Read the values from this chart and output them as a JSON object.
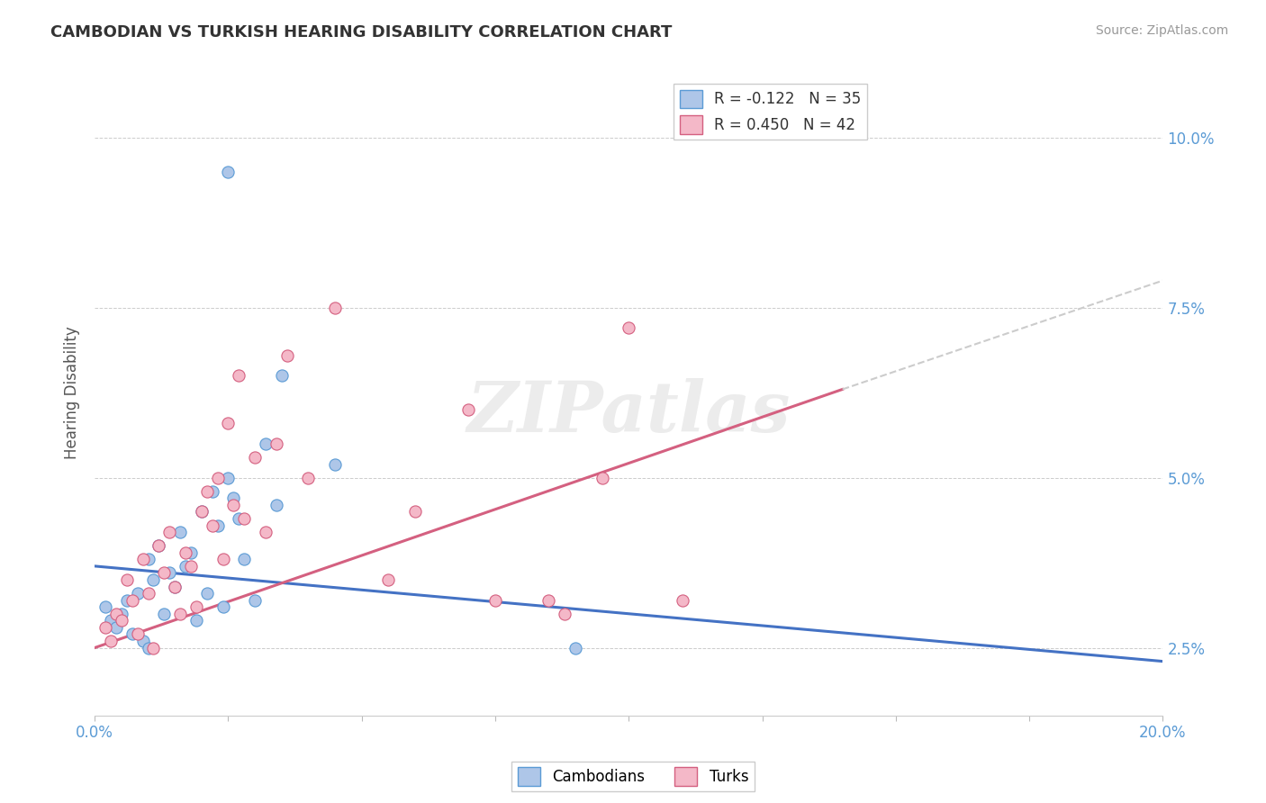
{
  "title": "CAMBODIAN VS TURKISH HEARING DISABILITY CORRELATION CHART",
  "source": "Source: ZipAtlas.com",
  "ylabel_label": "Hearing Disability",
  "xlim": [
    0.0,
    20.0
  ],
  "ylim": [
    1.5,
    11.0
  ],
  "ytop": 10.0,
  "cambodian_color": "#aec6e8",
  "turkish_color": "#f4b8c8",
  "cambodian_edge": "#5b9bd5",
  "turkish_edge": "#d46080",
  "legend_label_1": "R = -0.122   N = 35",
  "legend_label_2": "R = 0.450   N = 42",
  "watermark": "ZIPatlas",
  "trendline_cambodian_color": "#4472c4",
  "trendline_turkish_color": "#d46080",
  "trendline_extra_color": "#cccccc",
  "ytick_vals": [
    2.5,
    5.0,
    7.5,
    10.0
  ],
  "xtick_show": [
    0.0,
    20.0
  ],
  "grid_color": "#dddddd",
  "cam_x": [
    0.2,
    0.3,
    0.4,
    0.5,
    0.6,
    0.7,
    0.8,
    0.9,
    1.0,
    1.0,
    1.1,
    1.2,
    1.3,
    1.4,
    1.5,
    1.6,
    1.7,
    1.8,
    1.9,
    2.0,
    2.1,
    2.2,
    2.3,
    2.4,
    2.5,
    2.6,
    2.7,
    2.8,
    3.0,
    3.2,
    3.4,
    3.5,
    4.5,
    9.0,
    2.5
  ],
  "cam_y": [
    3.1,
    2.9,
    2.8,
    3.0,
    3.2,
    2.7,
    3.3,
    2.6,
    3.8,
    2.5,
    3.5,
    4.0,
    3.0,
    3.6,
    3.4,
    4.2,
    3.7,
    3.9,
    2.9,
    4.5,
    3.3,
    4.8,
    4.3,
    3.1,
    5.0,
    4.7,
    4.4,
    3.8,
    3.2,
    5.5,
    4.6,
    6.5,
    5.2,
    2.5,
    9.5
  ],
  "turk_x": [
    0.2,
    0.3,
    0.4,
    0.5,
    0.6,
    0.7,
    0.8,
    0.9,
    1.0,
    1.1,
    1.2,
    1.3,
    1.4,
    1.5,
    1.6,
    1.7,
    1.8,
    1.9,
    2.0,
    2.1,
    2.2,
    2.3,
    2.4,
    2.5,
    2.6,
    2.7,
    2.8,
    3.0,
    3.2,
    3.4,
    3.6,
    4.0,
    4.5,
    5.5,
    6.0,
    7.0,
    7.5,
    8.5,
    8.8,
    9.5,
    10.0,
    11.0
  ],
  "turk_y": [
    2.8,
    2.6,
    3.0,
    2.9,
    3.5,
    3.2,
    2.7,
    3.8,
    3.3,
    2.5,
    4.0,
    3.6,
    4.2,
    3.4,
    3.0,
    3.9,
    3.7,
    3.1,
    4.5,
    4.8,
    4.3,
    5.0,
    3.8,
    5.8,
    4.6,
    6.5,
    4.4,
    5.3,
    4.2,
    5.5,
    6.8,
    5.0,
    7.5,
    3.5,
    4.5,
    6.0,
    3.2,
    3.2,
    3.0,
    5.0,
    7.2,
    3.2
  ],
  "cam_trend_x0": 0.0,
  "cam_trend_x1": 20.0,
  "cam_trend_y0": 3.7,
  "cam_trend_y1": 2.3,
  "turk_trend_x0": 0.0,
  "turk_trend_x1": 14.0,
  "turk_trend_y0": 2.5,
  "turk_trend_y1": 6.3,
  "turk_dashed_x0": 14.0,
  "turk_dashed_x1": 20.0,
  "turk_dashed_y0": 6.3,
  "turk_dashed_y1": 7.9
}
